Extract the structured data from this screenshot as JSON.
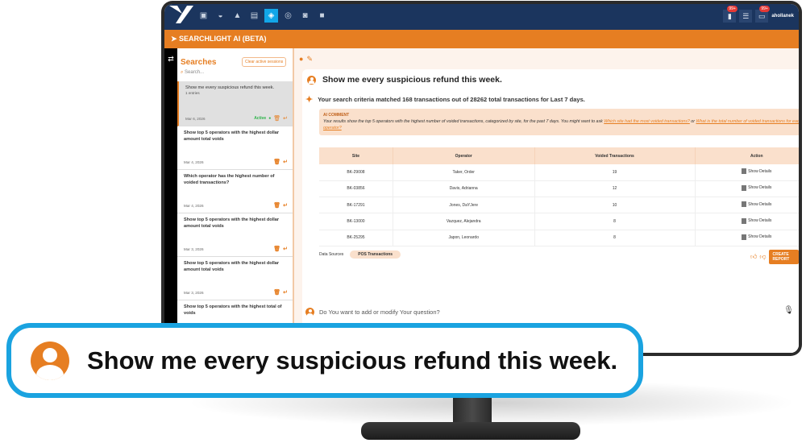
{
  "app": {
    "title": "SEARCHLIGHT AI (BETA)",
    "user": "ahollanek",
    "badges": [
      "99+",
      "99+"
    ]
  },
  "nav_icons": [
    "dashboard-icon",
    "camera-icon",
    "bell-icon",
    "report-icon",
    "searchlight-icon",
    "settings-icon",
    "video-icon",
    "briefcase-icon"
  ],
  "sidebar": {
    "title": "Searches",
    "clear_label": "Clear active sessions",
    "search_placeholder": "Search...",
    "items": [
      {
        "text": "Show me every suspicious refund this week.",
        "sub": "1 entries",
        "date": "Mar 6, 2026",
        "status": "Active"
      },
      {
        "text": "Show top 5 operators with the highest dollar amount total voids",
        "date": "Mar 4, 2026"
      },
      {
        "text": "Which operator has the highest number of voided transactions?",
        "date": "Mar 4, 2026"
      },
      {
        "text": "Show top 5 operators with the highest dollar amount total voids",
        "date": "Mar 3, 2026"
      },
      {
        "text": "Show top 5 operators with the highest dollar amount total voids",
        "date": "Mar 3, 2026"
      },
      {
        "text": "Show top 5 operators with the highest total of voids"
      }
    ]
  },
  "main": {
    "question": "Show me every suspicious refund this week.",
    "result": "Your search criteria matched 168 transactions out of 28262 total transactions for Last 7 days.",
    "comment": {
      "heading": "AI COMMENT",
      "text": "Your results show the top 5 operators with the highest number of voided transactions, categorized by site, for the past 7 days. You might want to ask ",
      "link1": "Which site had the most voided transactions?",
      "or": " or ",
      "link2": "What is the total number of voided transactions for each operator?"
    },
    "table": {
      "headers": [
        "Site",
        "Operator",
        "Voided Transactions",
        "Action"
      ],
      "rows": [
        [
          "BK-29008",
          "Taker, Order",
          "19",
          "Show Details"
        ],
        [
          "BK-03856",
          "Davis, Adrianna",
          "12",
          "Show Details"
        ],
        [
          "BK-17291",
          "Jones, DaYJere",
          "10",
          "Show Details"
        ],
        [
          "BK-13000",
          "Vazquez, Alejandra",
          "8",
          "Show Details"
        ],
        [
          "BK-25295",
          "Japon, Leonardo",
          "8",
          "Show Details"
        ]
      ]
    },
    "data_sources_label": "Data Sources",
    "data_source": "POS Transactions",
    "create_report": "CREATE REPORT",
    "ask_placeholder": "Do You want to add or modify Your question?"
  },
  "callout": {
    "text": "Show me every suspicious refund this week."
  },
  "colors": {
    "accent": "#e67e22",
    "nav": "#1b355e",
    "callout_border": "#1aa3e0",
    "active": "#2db34a"
  }
}
